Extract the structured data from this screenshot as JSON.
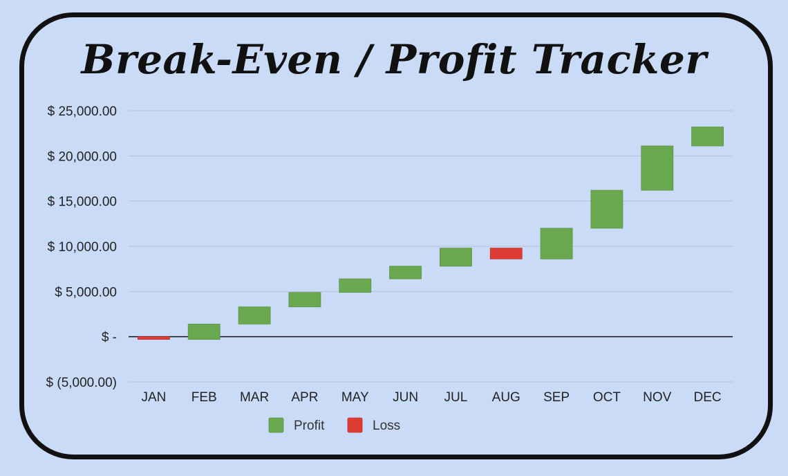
{
  "chart_data": {
    "type": "waterfall",
    "title": "Break-Even / Profit Tracker",
    "categories": [
      "JAN",
      "FEB",
      "MAR",
      "APR",
      "MAY",
      "JUN",
      "JUL",
      "AUG",
      "SEP",
      "OCT",
      "NOV",
      "DEC"
    ],
    "changes": [
      -300,
      1700,
      1900,
      1600,
      1500,
      1400,
      2000,
      -1200,
      3400,
      4200,
      4900,
      2100
    ],
    "ylim": [
      -5000,
      25000
    ],
    "yticks": [
      {
        "value": 25000,
        "label": "$ 25,000.00"
      },
      {
        "value": 20000,
        "label": "$ 20,000.00"
      },
      {
        "value": 15000,
        "label": "$ 15,000.00"
      },
      {
        "value": 10000,
        "label": "$ 10,000.00"
      },
      {
        "value": 5000,
        "label": "$ 5,000.00"
      },
      {
        "value": 0,
        "label": "$ -"
      },
      {
        "value": -5000,
        "label": "$ (5,000.00)"
      }
    ],
    "grid": true,
    "legend": [
      {
        "name": "Profit",
        "color": "#6aa84f"
      },
      {
        "name": "Loss",
        "color": "#dd3c32"
      }
    ],
    "legend_position": "bottom"
  }
}
